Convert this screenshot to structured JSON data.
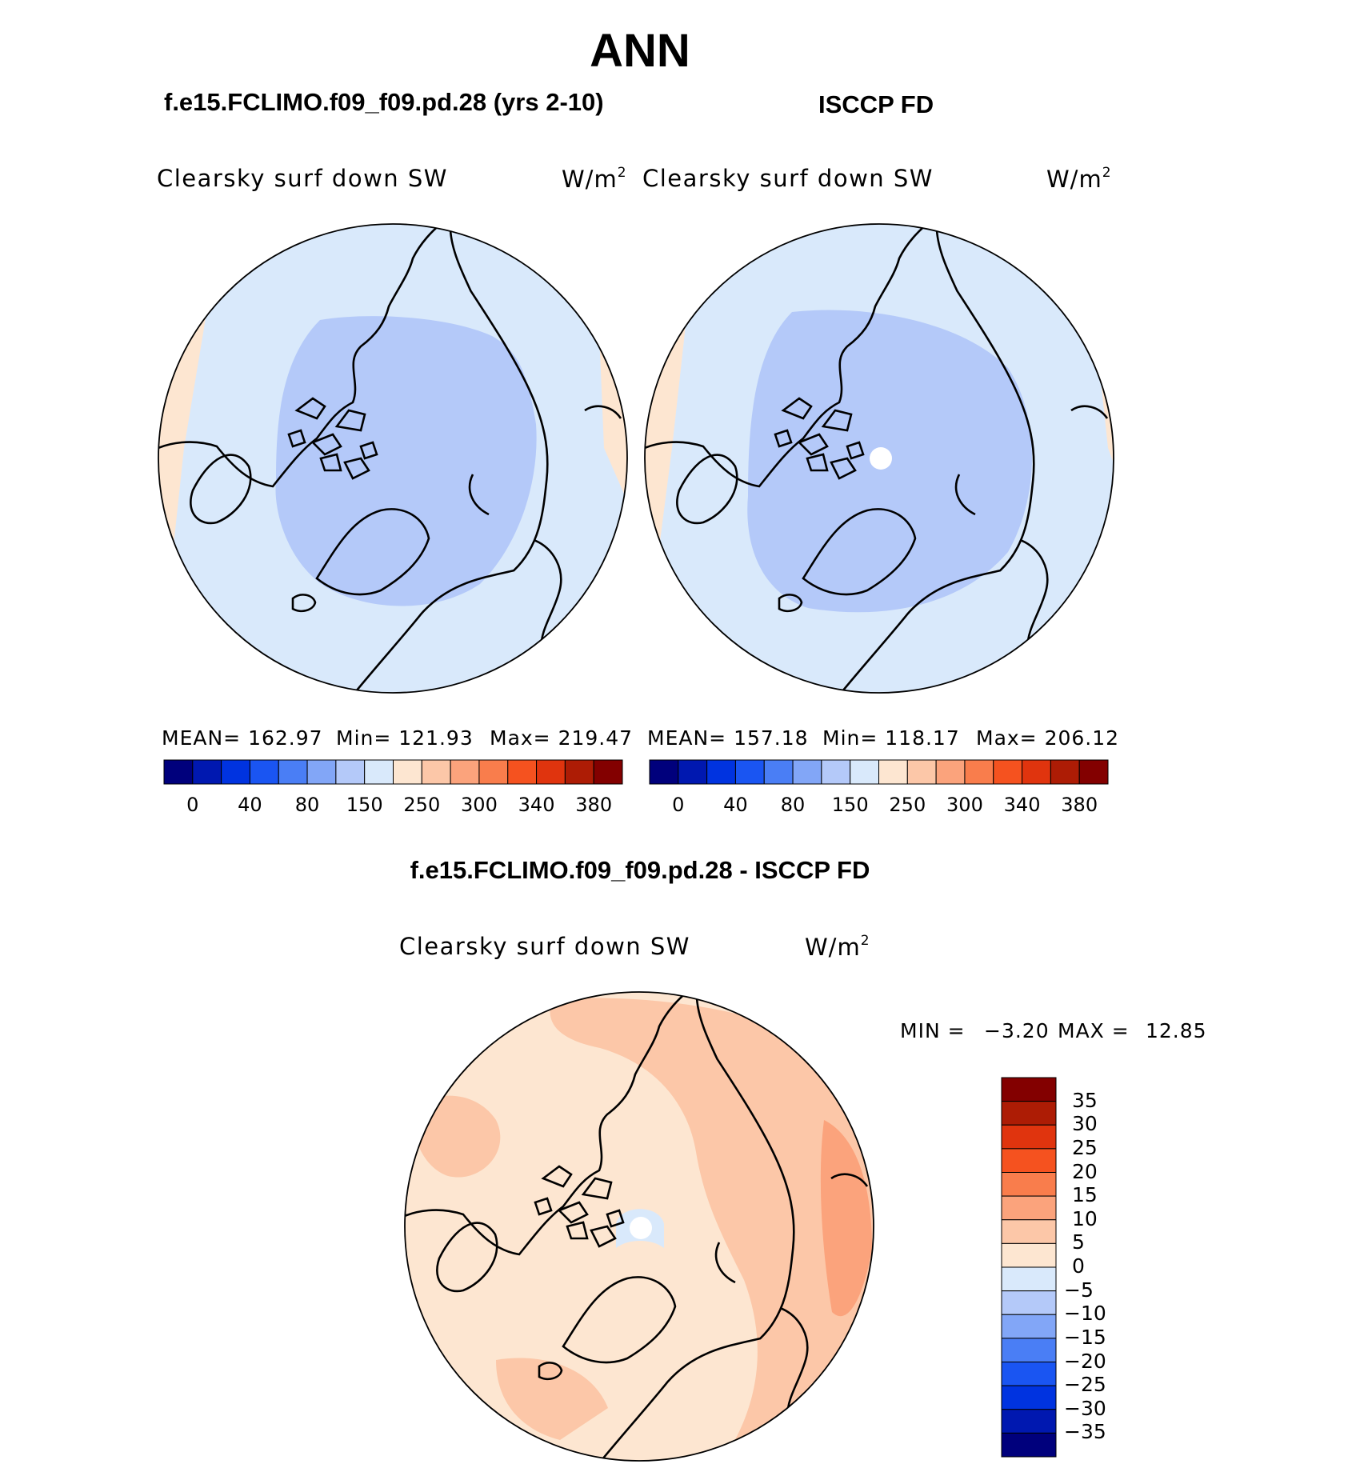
{
  "main_title": "ANN",
  "colors": {
    "palette": [
      "#00007c",
      "#0018b0",
      "#0033e0",
      "#1a55f2",
      "#4a7ef5",
      "#82a6f7",
      "#b4c9f9",
      "#d9e9fb",
      "#fde6d1",
      "#fcc7a8",
      "#fba37c",
      "#f97d4c",
      "#f5521f",
      "#e0340e",
      "#ad1c05",
      "#830000"
    ],
    "model_ocean": "#d9e9fb",
    "model_polar": "#b4c9f9",
    "obs_ocean": "#d9e9fb",
    "obs_polar": "#b4c9f9",
    "warm_edge": "#fde6d1",
    "diff_light": "#fde6d1",
    "diff_medium": "#fcc7a8",
    "diff_dark": "#fba37c",
    "diff_negative": "#d9e9fb",
    "coast": "#000000"
  },
  "chart_data": [
    {
      "type": "heatmap",
      "panel": "model",
      "title": "f.e15.FCLIMO.f09_f09.pd.28 (yrs 2-10)",
      "variable": "Clearsky surf down SW",
      "units_text": "W/m",
      "units_power": "2",
      "projection": "north polar stereographic",
      "stats": {
        "mean": "MEAN= 162.97",
        "min": "Min= 121.93",
        "max": "Max= 219.47"
      },
      "colorbar": {
        "orientation": "horizontal",
        "boundaries": [
          0,
          20,
          40,
          60,
          80,
          100,
          150,
          200,
          250,
          275,
          300,
          320,
          340,
          360,
          380
        ],
        "tick_labels": [
          "0",
          "40",
          "80",
          "150",
          "250",
          "300",
          "340",
          "380"
        ]
      }
    },
    {
      "type": "heatmap",
      "panel": "observations",
      "title": "ISCCP FD",
      "variable": "Clearsky surf down SW",
      "units_text": "W/m",
      "units_power": "2",
      "projection": "north polar stereographic",
      "stats": {
        "mean": "MEAN= 157.18",
        "min": "Min= 118.17",
        "max": "Max= 206.12"
      },
      "colorbar": {
        "orientation": "horizontal",
        "boundaries": [
          0,
          20,
          40,
          60,
          80,
          100,
          150,
          200,
          250,
          275,
          300,
          320,
          340,
          360,
          380
        ],
        "tick_labels": [
          "0",
          "40",
          "80",
          "150",
          "250",
          "300",
          "340",
          "380"
        ]
      }
    },
    {
      "type": "heatmap",
      "panel": "difference",
      "title": "f.e15.FCLIMO.f09_f09.pd.28 - ISCCP FD",
      "variable": "Clearsky surf down SW",
      "units_text": "W/m",
      "units_power": "2",
      "projection": "north polar stereographic",
      "stats": {
        "min_label": "MIN =",
        "min": "−3.20",
        "max_label": "MAX =",
        "max": "12.85"
      },
      "colorbar": {
        "orientation": "vertical",
        "tick_labels": [
          "35",
          "30",
          "25",
          "20",
          "15",
          "10",
          "5",
          "0",
          "−5",
          "−10",
          "−15",
          "−20",
          "−25",
          "−30",
          "−35"
        ]
      }
    }
  ]
}
